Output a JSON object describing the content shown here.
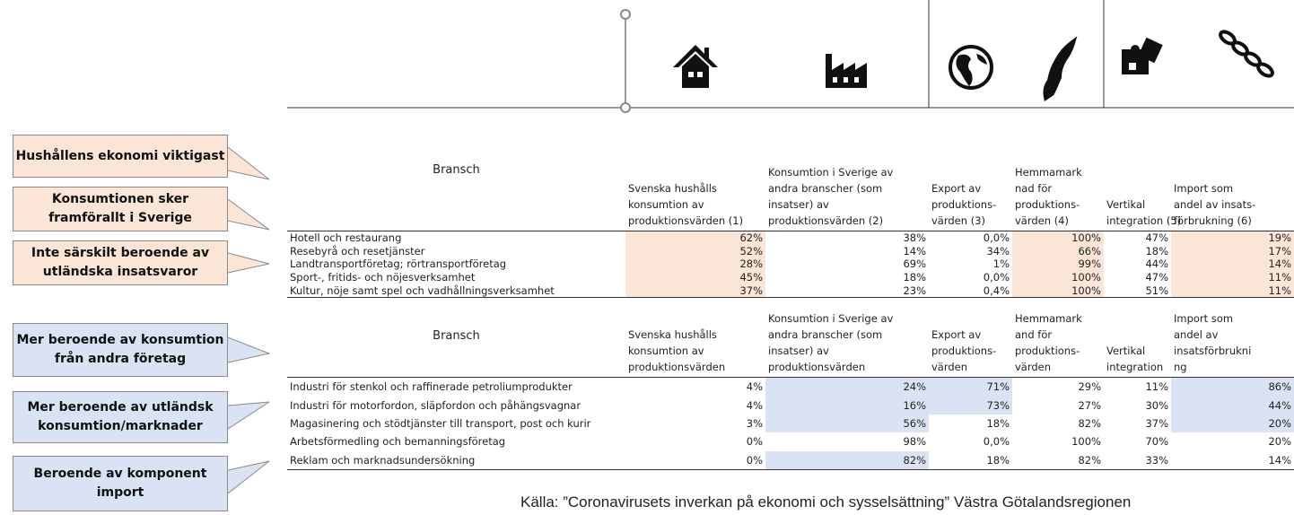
{
  "callouts": [
    "Hushållens ekonomi viktigast",
    "Konsumtionen sker framförallt i Sverige",
    "Inte särskilt beroende av utländska insatsvaror",
    "Mer beroende av konsumtion från andra företag",
    "Mer beroende av utländsk konsumtion/marknader",
    "Beroende av komponent import"
  ],
  "table": {
    "sections": [
      {
        "header": [
          [
            "Bransch"
          ],
          [
            "Svenska hushålls",
            "konsumtion av",
            "produktionsvärden (1)"
          ],
          [
            "Konsumtion i Sverige av",
            "andra branscher (som",
            "insatser) av",
            "produktionsvärden (2)"
          ],
          [
            "Export av",
            "produktions-",
            "värden (3)"
          ],
          [
            "Hemmamark",
            "nad för",
            "produktions-",
            "värden (4)"
          ],
          [
            "Vertikal",
            "integration (5)"
          ],
          [
            "Import som",
            "andel av insats-",
            "förbrukning (6)"
          ]
        ],
        "rows": [
          [
            "Hotell och restaurang",
            "62%",
            "38%",
            "0,0%",
            "100%",
            "47%",
            "19%"
          ],
          [
            "Resebyrå och resetjänster",
            "52%",
            "14%",
            "34%",
            "66%",
            "18%",
            "17%"
          ],
          [
            "Landtransportföretag; rörtransportföretag",
            "28%",
            "69%",
            "1%",
            "99%",
            "44%",
            "14%"
          ],
          [
            "Sport-, fritids- och nöjesverksamhet",
            "45%",
            "18%",
            "0,0%",
            "100%",
            "47%",
            "11%"
          ],
          [
            "Kultur, nöje samt spel och vadhållningsverksamhet",
            "37%",
            "23%",
            "0,4%",
            "100%",
            "51%",
            "11%"
          ]
        ]
      },
      {
        "header": [
          [
            "Bransch"
          ],
          [
            "Svenska hushålls",
            "konsumtion av",
            "produktionsvärden"
          ],
          [
            "Konsumtion i Sverige av",
            "andra branscher (som",
            "insatser) av",
            "produktionsvärden"
          ],
          [
            "Export av",
            "produktions-",
            "värden"
          ],
          [
            "Hemmamark",
            "and för",
            "produktions-",
            "värden"
          ],
          [
            "Vertikal",
            "integration"
          ],
          [
            "Import som",
            "andel av",
            "insatsförbrukni",
            "ng"
          ]
        ],
        "rows": [
          [
            "Industri för stenkol och raffinerade petroliumprodukter",
            "4%",
            "24%",
            "71%",
            "29%",
            "11%",
            "86%"
          ],
          [
            "Industri för motorfordon, släpfordon och påhängsvagnar",
            "4%",
            "16%",
            "73%",
            "27%",
            "30%",
            "44%"
          ],
          [
            "Magasinering och stödtjänster till transport, post och kurir",
            "3%",
            "56%",
            "18%",
            "82%",
            "37%",
            "20%"
          ],
          [
            "Arbetsförmedling och bemanningsföretag",
            "0%",
            "98%",
            "0,0%",
            "100%",
            "70%",
            "20%"
          ],
          [
            "Reklam och marknadsundersökning",
            "0%",
            "82%",
            "18%",
            "82%",
            "33%",
            "14%"
          ]
        ]
      }
    ]
  },
  "source": "Källa: ”Coronavirusets inverkan på ekonomi och sysselsättning” Västra Götalandsregionen"
}
